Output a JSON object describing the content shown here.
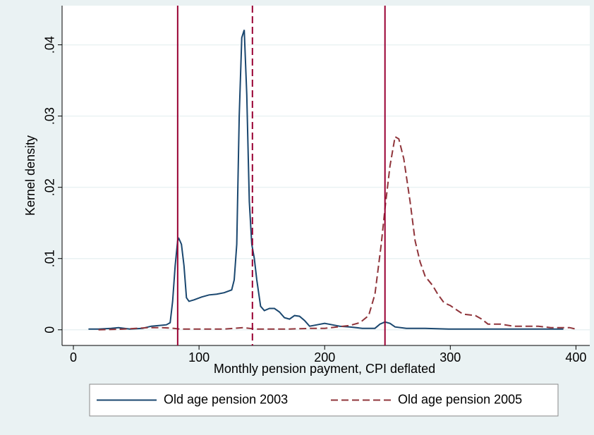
{
  "chart_data": {
    "type": "line",
    "xlabel": "Monthly pension payment, CPI deflated",
    "ylabel": "Kernel density",
    "xlim": [
      -9,
      411
    ],
    "ylim": [
      -0.0022,
      0.0455
    ],
    "xticks": [
      0,
      100,
      200,
      300,
      400
    ],
    "yticks": [
      0,
      {
        "value": 0.01,
        "label": ".01"
      },
      {
        "value": 0.02,
        "label": ".02"
      },
      {
        "value": 0.03,
        "label": ".03"
      },
      {
        "value": 0.04,
        "label": ".04"
      }
    ],
    "grid": true,
    "legend": "bottom",
    "xlines": [
      {
        "value": 83,
        "style": "solid",
        "color": "#990033"
      },
      {
        "value": 142.5,
        "style": "dashed",
        "color": "#990033"
      },
      {
        "value": 248,
        "style": "solid",
        "color": "#990033"
      }
    ],
    "series": [
      {
        "name": "Old age pension 2003",
        "color": "#1a476f",
        "style": "solid",
        "x": [
          12,
          20,
          30,
          36,
          45,
          55,
          62,
          68,
          74,
          77,
          79,
          81,
          83,
          84,
          86,
          88,
          90,
          92,
          96,
          102,
          108,
          114,
          120,
          126,
          128,
          130,
          132,
          134,
          136,
          138,
          140,
          142,
          144,
          146,
          149,
          152,
          156,
          160,
          164,
          168,
          172,
          176,
          180,
          184,
          188,
          194,
          200,
          206,
          212,
          220,
          230,
          240,
          244,
          248,
          252,
          256,
          265,
          280,
          300,
          330,
          360,
          390
        ],
        "values": [
          0.0001,
          0.0001,
          0.0002,
          0.0003,
          0.0001,
          0.0002,
          0.0005,
          0.0006,
          0.0007,
          0.001,
          0.004,
          0.009,
          0.0125,
          0.0128,
          0.012,
          0.009,
          0.0045,
          0.004,
          0.0042,
          0.0046,
          0.0049,
          0.005,
          0.0052,
          0.0056,
          0.007,
          0.012,
          0.03,
          0.041,
          0.0421,
          0.033,
          0.018,
          0.012,
          0.01,
          0.007,
          0.0033,
          0.0027,
          0.003,
          0.003,
          0.0025,
          0.0017,
          0.0015,
          0.002,
          0.0019,
          0.0013,
          0.0005,
          0.0007,
          0.0009,
          0.0007,
          0.0005,
          0.0004,
          0.0002,
          0.0002,
          0.0008,
          0.0011,
          0.0009,
          0.0004,
          0.0002,
          0.0002,
          0.0001,
          0.0001,
          0.0001,
          0.0001
        ]
      },
      {
        "name": "Old age pension 2005",
        "color": "#90353b",
        "style": "dashed",
        "x": [
          20,
          40,
          60,
          70,
          80,
          85,
          100,
          120,
          135,
          145,
          170,
          190,
          200,
          210,
          220,
          228,
          235,
          240,
          245,
          248,
          252,
          256,
          259,
          263,
          268,
          272,
          276,
          280,
          286,
          290,
          295,
          300,
          305,
          310,
          320,
          325,
          330,
          340,
          350,
          370,
          380,
          395,
          400
        ],
        "values": [
          0,
          0.0001,
          0.0003,
          0.0003,
          0.0002,
          0.0001,
          0.0001,
          0.0001,
          0.0003,
          0.0001,
          0.0001,
          0.0002,
          0.0002,
          0.0004,
          0.0006,
          0.001,
          0.002,
          0.005,
          0.012,
          0.017,
          0.023,
          0.0271,
          0.0268,
          0.024,
          0.018,
          0.0125,
          0.0095,
          0.0075,
          0.0062,
          0.005,
          0.0038,
          0.0034,
          0.0028,
          0.0022,
          0.002,
          0.0015,
          0.0008,
          0.0008,
          0.0005,
          0.0005,
          0.0003,
          0.0003,
          0.0001
        ]
      }
    ]
  }
}
